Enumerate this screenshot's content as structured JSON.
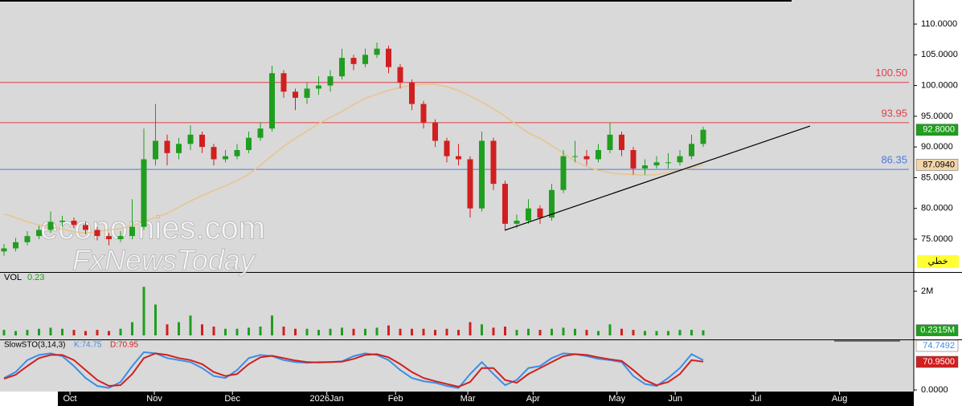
{
  "chart_data": [
    {
      "type": "candlestick",
      "xlim": [
        -0.345,
        78.07
      ],
      "xticks": [
        {
          "value": 5.66,
          "label": "Oct"
        },
        {
          "value": 12.9,
          "label": "Nov"
        },
        {
          "value": 19.6,
          "label": "Dec"
        },
        {
          "value": 27.7,
          "label": "2026Jan"
        },
        {
          "value": 33.6,
          "label": "Feb"
        },
        {
          "value": 39.8,
          "label": "Mar"
        },
        {
          "value": 45.4,
          "label": "Apr"
        },
        {
          "value": 52.6,
          "label": "May"
        },
        {
          "value": 57.6,
          "label": "Jun"
        },
        {
          "value": 64.5,
          "label": "Jul"
        },
        {
          "value": 71.7,
          "label": "Aug"
        }
      ],
      "ylim": [
        69.78,
        113.66
      ],
      "yticks": [
        {
          "value": 75,
          "label": "75.0000"
        },
        {
          "value": 80,
          "label": "80.0000"
        },
        {
          "value": 85,
          "label": "85.0000"
        },
        {
          "value": 90,
          "label": "90.0000"
        },
        {
          "value": 95,
          "label": "95.0000"
        },
        {
          "value": 100,
          "label": "100.0000"
        },
        {
          "value": 105,
          "label": "105.0000"
        },
        {
          "value": 110,
          "label": "110.0000"
        }
      ],
      "open": [
        73,
        73.5,
        74.5,
        75.5,
        76.5,
        77.8,
        78,
        77.3,
        76.5,
        75.5,
        75,
        75.5,
        77,
        88,
        91,
        89,
        90.5,
        92,
        90,
        88,
        88.5,
        89.5,
        91.5,
        93,
        102,
        99,
        98,
        99.5,
        100,
        101.5,
        104.5,
        103.5,
        105,
        106,
        103,
        100.5,
        97,
        94,
        91,
        88.5,
        88,
        80,
        91,
        84,
        77.5,
        78,
        80,
        78.5,
        83,
        88.5,
        88.5,
        88,
        89.5,
        92,
        89.5,
        86.5,
        87,
        87.5,
        87.5,
        88.5,
        90.5
      ],
      "high": [
        74.2,
        75.2,
        76.3,
        77.2,
        79.5,
        78.8,
        78.5,
        77.8,
        77,
        76,
        76.3,
        81.5,
        93,
        97,
        92,
        91.5,
        93.5,
        92.5,
        90.5,
        89.5,
        90.5,
        92.5,
        94,
        103.2,
        102.5,
        99.5,
        100.5,
        101.5,
        102.5,
        106,
        105,
        106,
        107,
        106.5,
        103.5,
        101,
        97.5,
        94.5,
        91.5,
        90.5,
        88.5,
        92.5,
        91.5,
        84.5,
        79,
        81.5,
        80.5,
        84,
        89.5,
        91,
        89.5,
        90.5,
        94,
        92.5,
        90,
        88,
        88.5,
        89,
        89.5,
        92,
        93.3
      ],
      "low": [
        72.3,
        73,
        74,
        75,
        76,
        77,
        76.8,
        75.8,
        74.8,
        74,
        74.5,
        75,
        76.5,
        87,
        87,
        88,
        89.5,
        89,
        87,
        87.5,
        88,
        89,
        91,
        92.5,
        98,
        96,
        97,
        98.5,
        99,
        101,
        102.5,
        103,
        104.5,
        102,
        99.5,
        96,
        93,
        90,
        87.5,
        87,
        78.5,
        79.5,
        83,
        76.5,
        76.8,
        77.5,
        77.5,
        78,
        82.5,
        87.5,
        87,
        87.5,
        89,
        88.5,
        85.5,
        85.5,
        86.5,
        86.5,
        87,
        88,
        90
      ],
      "close": [
        73.5,
        74.5,
        75.5,
        76.5,
        77.8,
        78,
        77.3,
        76.5,
        75.5,
        75,
        75.5,
        77,
        88,
        91,
        89,
        90.5,
        92,
        90,
        88,
        88.5,
        89.5,
        91.5,
        93,
        102,
        99,
        98,
        99.5,
        100,
        101.5,
        104.5,
        103.5,
        105,
        106,
        103,
        100.5,
        97,
        94,
        91,
        88.5,
        88,
        80,
        91,
        84,
        77.5,
        78,
        80,
        78.5,
        83,
        88.5,
        88.5,
        88,
        89.5,
        92,
        89.5,
        86.5,
        87,
        87.5,
        87.5,
        88.5,
        90.5,
        92.8
      ],
      "last_close_label": "92.8000",
      "up_color": "#1f9e1f",
      "down_color": "#d11f1f",
      "moving_average": {
        "color": "#e8c48c",
        "last_label": "87.0940",
        "values": [
          79.1,
          78.5,
          77.8,
          77.3,
          77,
          76.6,
          76.2,
          76,
          76.2,
          76.5,
          76.7,
          77.2,
          77.9,
          78.5,
          79.2,
          80.2,
          81.2,
          82.1,
          82.9,
          83.7,
          84.5,
          85.6,
          87,
          88.6,
          90.1,
          91.4,
          92.6,
          93.8,
          94.8,
          95.8,
          96.9,
          97.9,
          98.6,
          99.2,
          99.7,
          100,
          100.2,
          100.2,
          99.8,
          99.2,
          98.3,
          97.3,
          96.2,
          95,
          93.6,
          92.3,
          91.4,
          90.2,
          89,
          87.7,
          86.8,
          86.2,
          85.8,
          85.6,
          85.5,
          85.4,
          85.5,
          85.9,
          86.2,
          86.6,
          87.094
        ]
      },
      "levels": [
        {
          "value": 100.5,
          "label": "100.50",
          "color": "#e0404a"
        },
        {
          "value": 93.95,
          "label": "93.95",
          "color": "#e0404a"
        },
        {
          "value": 86.35,
          "label": "86.35",
          "color": "#4a78e0"
        }
      ],
      "trendline": {
        "x": [
          42.97,
          69.17
        ],
        "y": [
          76.44,
          93.41
        ],
        "color": "#000000"
      },
      "badge": "خطي",
      "watermark": [
        "economies.com",
        "FxNewsToday"
      ]
    },
    {
      "type": "volume",
      "label": "VOL",
      "short_label": "0.23",
      "ylim": [
        0,
        2800000
      ],
      "yticks": [
        {
          "value": 2000000,
          "label": "2M"
        }
      ],
      "values": [
        250000,
        200000,
        250000,
        300000,
        350000,
        300000,
        250000,
        200000,
        250000,
        200000,
        300000,
        600000,
        2200000,
        1400000,
        500000,
        600000,
        900000,
        500000,
        400000,
        300000,
        300000,
        350000,
        400000,
        900000,
        400000,
        300000,
        300000,
        250000,
        300000,
        350000,
        300000,
        300000,
        350000,
        450000,
        300000,
        300000,
        300000,
        250000,
        300000,
        250000,
        600000,
        500000,
        350000,
        400000,
        250000,
        300000,
        250000,
        300000,
        350000,
        300000,
        250000,
        200000,
        500000,
        300000,
        250000,
        200000,
        200000,
        200000,
        250000,
        250000,
        231500
      ],
      "last_label": "0.2315M"
    },
    {
      "type": "stochastic",
      "label": "SlowSTO(3,14,3)",
      "ylim": [
        0,
        125
      ],
      "yticks": [
        {
          "value": 0,
          "label": "0.0000"
        }
      ],
      "series": [
        {
          "label": "K:74.75",
          "color": "#3a8ee6",
          "last_label": "74.7492",
          "values": [
            30,
            45,
            75,
            88,
            92,
            85,
            60,
            30,
            10,
            5,
            20,
            60,
            95,
            92,
            80,
            75,
            70,
            55,
            35,
            30,
            50,
            80,
            88,
            85,
            75,
            70,
            68,
            70,
            70,
            72,
            85,
            92,
            88,
            75,
            50,
            30,
            22,
            18,
            10,
            5,
            40,
            70,
            40,
            12,
            25,
            55,
            60,
            80,
            92,
            90,
            85,
            78,
            75,
            70,
            35,
            15,
            10,
            30,
            55,
            90,
            74.7492
          ]
        },
        {
          "label": "D:70.95",
          "color": "#d11f1f",
          "last_label": "70.9500",
          "values": [
            28,
            38,
            60,
            80,
            88,
            88,
            75,
            50,
            25,
            10,
            12,
            40,
            80,
            92,
            88,
            80,
            75,
            65,
            45,
            35,
            40,
            65,
            82,
            86,
            80,
            74,
            70,
            69,
            70,
            71,
            78,
            88,
            90,
            82,
            65,
            45,
            30,
            22,
            15,
            8,
            20,
            55,
            55,
            25,
            18,
            40,
            55,
            70,
            85,
            90,
            88,
            82,
            77,
            73,
            50,
            25,
            12,
            20,
            40,
            75,
            70.95
          ]
        }
      ]
    }
  ]
}
